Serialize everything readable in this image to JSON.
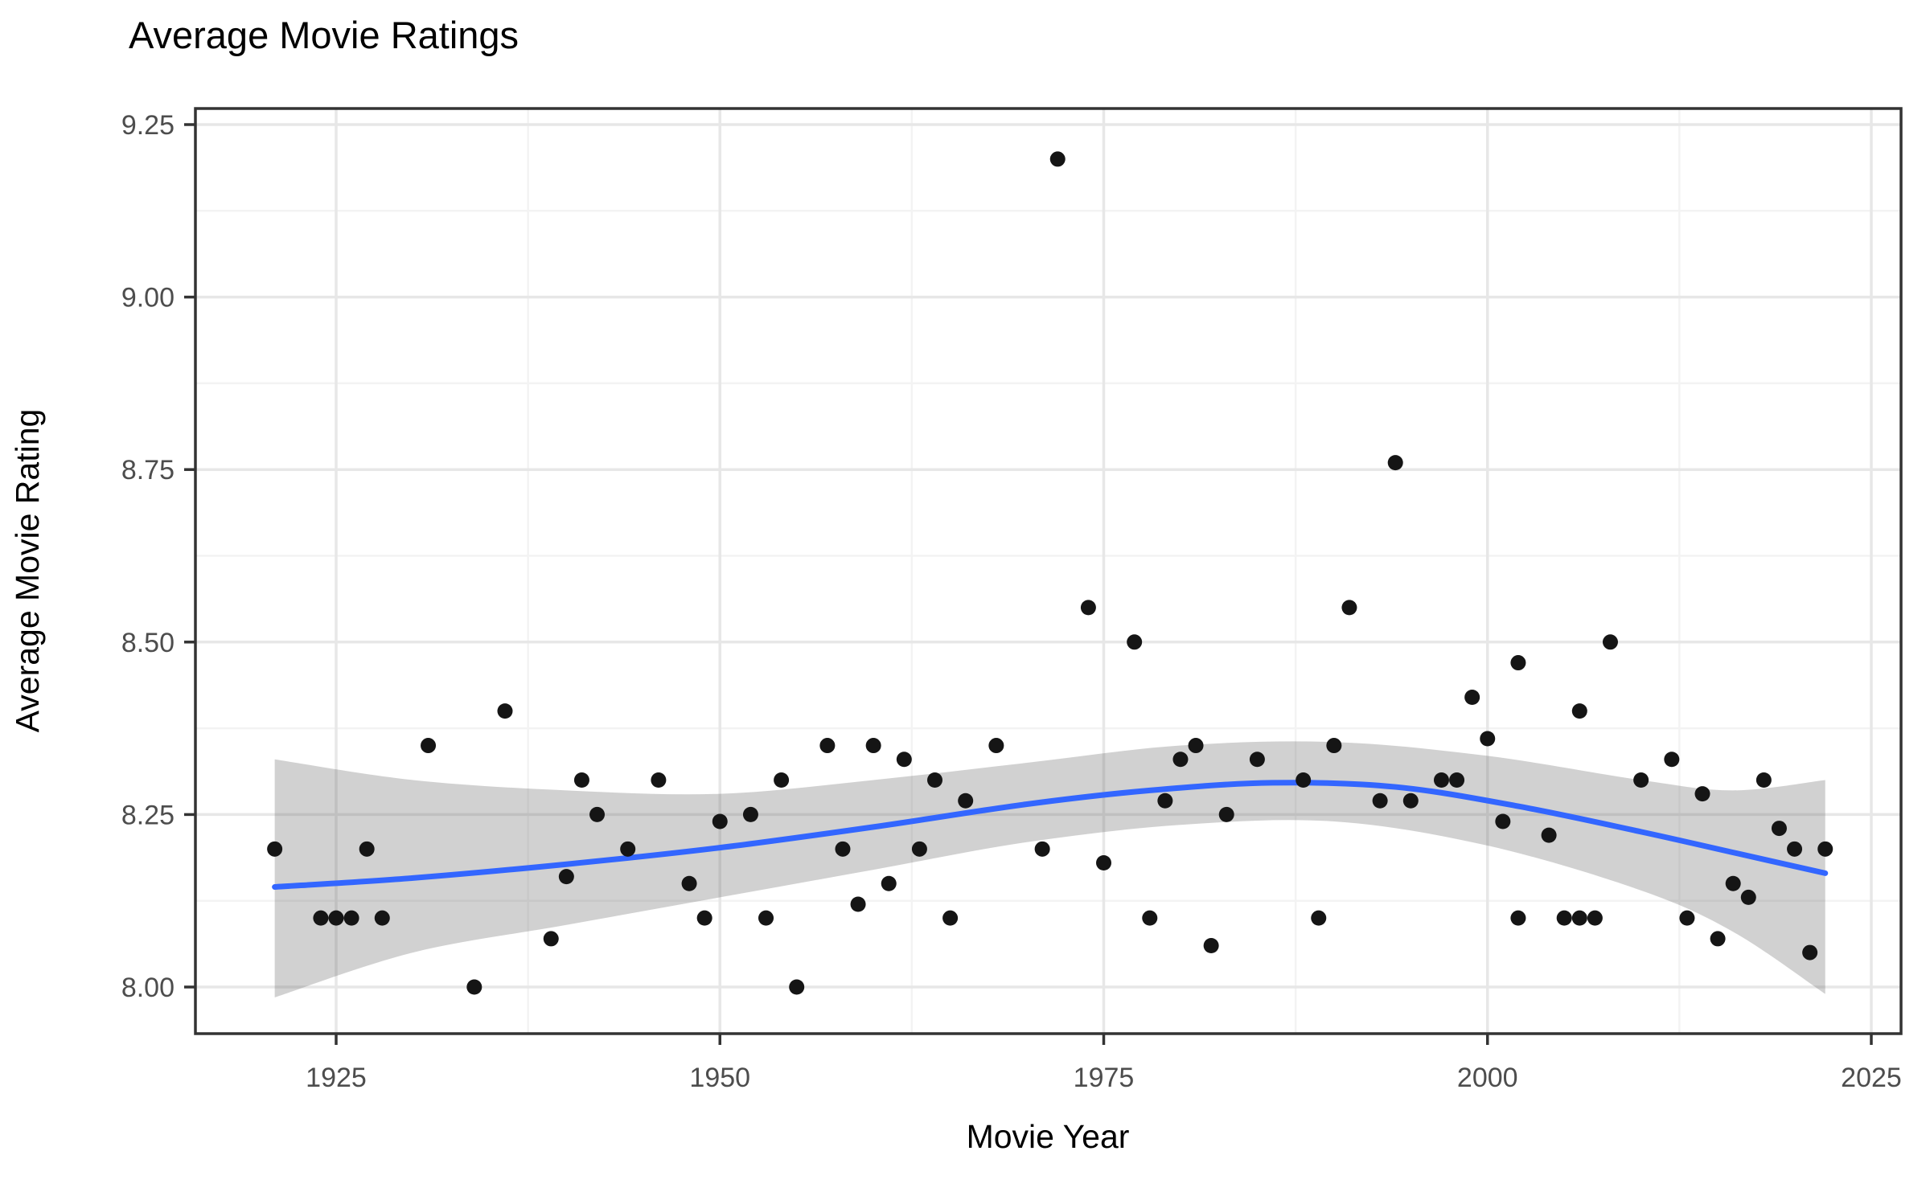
{
  "title": "Average Movie Ratings",
  "colors": {
    "point": "#151515",
    "smooth_line": "#3366FF",
    "ribbon": "rgba(102,102,102,0.30)",
    "grid_major": "#e7e7e7",
    "grid_minor": "#f3f3f3",
    "panel_border": "#333333",
    "tick_label": "#4d4d4d"
  },
  "chart_data": {
    "type": "scatter",
    "title": "Average Movie Ratings",
    "xlabel": "Movie Year",
    "ylabel": "Average Movie Rating",
    "legend": "none",
    "grid": "major and minor, light gray on white, dark panel border",
    "x_ticks": [
      "1925",
      "1950",
      "1975",
      "2000",
      "2025"
    ],
    "y_ticks": [
      "8.00",
      "8.25",
      "8.50",
      "8.75",
      "9.00",
      "9.25"
    ],
    "x_minor_ticks": [
      1937.5,
      1962.5,
      1987.5,
      2012.5
    ],
    "y_minor_ticks": [
      8.125,
      8.375,
      8.625,
      8.875,
      9.125
    ],
    "xlim": [
      1915.8,
      2026.9
    ],
    "ylim": [
      7.932,
      9.273
    ],
    "points": [
      [
        1921,
        8.2
      ],
      [
        1924,
        8.1
      ],
      [
        1925,
        8.1
      ],
      [
        1926,
        8.1
      ],
      [
        1927,
        8.2
      ],
      [
        1928,
        8.1
      ],
      [
        1931,
        8.35
      ],
      [
        1934,
        8.0
      ],
      [
        1936,
        8.4
      ],
      [
        1939,
        8.07
      ],
      [
        1940,
        8.16
      ],
      [
        1941,
        8.3
      ],
      [
        1942,
        8.25
      ],
      [
        1944,
        8.2
      ],
      [
        1946,
        8.3
      ],
      [
        1948,
        8.15
      ],
      [
        1949,
        8.1
      ],
      [
        1950,
        8.24
      ],
      [
        1952,
        8.25
      ],
      [
        1953,
        8.1
      ],
      [
        1954,
        8.3
      ],
      [
        1955,
        8.0
      ],
      [
        1957,
        8.35
      ],
      [
        1958,
        8.2
      ],
      [
        1959,
        8.12
      ],
      [
        1960,
        8.35
      ],
      [
        1961,
        8.15
      ],
      [
        1962,
        8.33
      ],
      [
        1963,
        8.2
      ],
      [
        1964,
        8.3
      ],
      [
        1965,
        8.1
      ],
      [
        1966,
        8.27
      ],
      [
        1968,
        8.35
      ],
      [
        1971,
        8.2
      ],
      [
        1972,
        9.2
      ],
      [
        1974,
        8.55
      ],
      [
        1975,
        8.18
      ],
      [
        1977,
        8.5
      ],
      [
        1978,
        8.1
      ],
      [
        1979,
        8.27
      ],
      [
        1980,
        8.33
      ],
      [
        1981,
        8.35
      ],
      [
        1982,
        8.06
      ],
      [
        1983,
        8.25
      ],
      [
        1985,
        8.33
      ],
      [
        1988,
        8.3
      ],
      [
        1989,
        8.1
      ],
      [
        1990,
        8.35
      ],
      [
        1991,
        8.55
      ],
      [
        1993,
        8.27
      ],
      [
        1994,
        8.76
      ],
      [
        1995,
        8.27
      ],
      [
        1997,
        8.3
      ],
      [
        1998,
        8.3
      ],
      [
        1999,
        8.42
      ],
      [
        2000,
        8.36
      ],
      [
        2001,
        8.24
      ],
      [
        2002,
        8.47
      ],
      [
        2002,
        8.1
      ],
      [
        2004,
        8.22
      ],
      [
        2005,
        8.1
      ],
      [
        2006,
        8.4
      ],
      [
        2006,
        8.1
      ],
      [
        2007,
        8.1
      ],
      [
        2008,
        8.5
      ],
      [
        2010,
        8.3
      ],
      [
        2012,
        8.33
      ],
      [
        2013,
        8.1
      ],
      [
        2014,
        8.28
      ],
      [
        2015,
        8.07
      ],
      [
        2016,
        8.15
      ],
      [
        2017,
        8.13
      ],
      [
        2018,
        8.3
      ],
      [
        2019,
        8.23
      ],
      [
        2020,
        8.2
      ],
      [
        2021,
        8.05
      ],
      [
        2022,
        8.2
      ]
    ],
    "smooth_line": [
      [
        1921,
        8.145
      ],
      [
        1930,
        8.158
      ],
      [
        1940,
        8.178
      ],
      [
        1950,
        8.202
      ],
      [
        1960,
        8.232
      ],
      [
        1970,
        8.265
      ],
      [
        1978,
        8.285
      ],
      [
        1986,
        8.296
      ],
      [
        1994,
        8.29
      ],
      [
        2002,
        8.262
      ],
      [
        2010,
        8.225
      ],
      [
        2016,
        8.195
      ],
      [
        2022,
        8.165
      ]
    ],
    "ribbon_x": [
      1921,
      1930,
      1940,
      1950,
      1960,
      1970,
      1980,
      1990,
      2000,
      2010,
      2016,
      2022
    ],
    "ribbon_upper": [
      8.33,
      8.3,
      8.285,
      8.28,
      8.3,
      8.325,
      8.35,
      8.355,
      8.335,
      8.3,
      8.285,
      8.3
    ],
    "ribbon_lower": [
      7.985,
      8.05,
      8.09,
      8.13,
      8.17,
      8.21,
      8.235,
      8.24,
      8.205,
      8.14,
      8.08,
      7.99
    ]
  }
}
